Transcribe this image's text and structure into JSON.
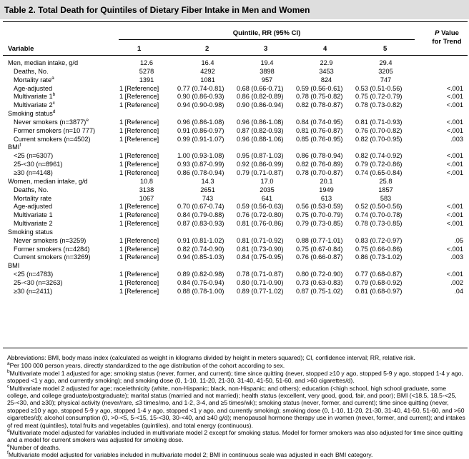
{
  "title": "Table 2. Total Death for Quintiles of Dietary Fiber Intake in Men and Women",
  "header": {
    "group": "Quintile, RR (95% CI)",
    "variable": "Variable",
    "q": [
      "1",
      "2",
      "3",
      "4",
      "5"
    ],
    "p_italic": "P",
    "p_value": "Value",
    "for_trend": "for Trend"
  },
  "rows": [
    {
      "label": "Men, median intake, g/d",
      "indent": false,
      "mid": true,
      "cells": [
        "12.6",
        "16.4",
        "19.4",
        "22.9",
        "29.4"
      ],
      "p": ""
    },
    {
      "label": "Deaths, No.",
      "indent": true,
      "mid": true,
      "cells": [
        "5278",
        "4292",
        "3898",
        "3453",
        "3205"
      ],
      "p": ""
    },
    {
      "label": "Mortality rate",
      "sup": "a",
      "indent": true,
      "mid": true,
      "cells": [
        "1391",
        "1081",
        "957",
        "824",
        "747"
      ],
      "p": ""
    },
    {
      "label": "Age-adjusted",
      "indent": true,
      "cells": [
        "1 [Reference]",
        "0.77 (0.74-0.81)",
        "0.68 (0.66-0.71)",
        "0.59 (0.56-0.61)",
        "0.53 (0.51-0.56)"
      ],
      "p": "<.001"
    },
    {
      "label": "Multivariate 1",
      "sup": "b",
      "indent": true,
      "cells": [
        "1 [Reference]",
        "0.90 (0.86-0.93)",
        "0.86 (0.82-0.89)",
        "0.78 (0.75-0.82)",
        "0.75 (0.72-0.79)"
      ],
      "p": "<.001"
    },
    {
      "label": "Multivariate 2",
      "sup": "c",
      "indent": true,
      "cells": [
        "1 [Reference]",
        "0.94 (0.90-0.98)",
        "0.90 (0.86-0.94)",
        "0.82 (0.78-0.87)",
        "0.78 (0.73-0.82)"
      ],
      "p": "<.001"
    },
    {
      "label": "Smoking status",
      "sup": "d",
      "indent": false,
      "cells": [
        "",
        "",
        "",
        "",
        ""
      ],
      "p": ""
    },
    {
      "label": "Never smokers (n=3877)",
      "sup": "e",
      "indent": true,
      "cells": [
        "1 [Reference]",
        "0.96 (0.86-1.08)",
        "0.96 (0.86-1.08)",
        "0.84 (0.74-0.95)",
        "0.81 (0.71-0.93)"
      ],
      "p": "<.001"
    },
    {
      "label": "Former smokers (n=10 777)",
      "indent": true,
      "cells": [
        "1 [Reference]",
        "0.91 (0.86-0.97)",
        "0.87 (0.82-0.93)",
        "0.81 (0.76-0.87)",
        "0.76 (0.70-0.82)"
      ],
      "p": "<.001"
    },
    {
      "label": "Current smokers (n=4502)",
      "indent": true,
      "cells": [
        "1 [Reference]",
        "0.99 (0.91-1.07)",
        "0.96 (0.88-1.06)",
        "0.85 (0.76-0.95)",
        "0.82 (0.70-0.95)"
      ],
      "p": ".003"
    },
    {
      "label": "BMI",
      "sup": "f",
      "indent": false,
      "cells": [
        "",
        "",
        "",
        "",
        ""
      ],
      "p": ""
    },
    {
      "label": "<25 (n=6307)",
      "indent": true,
      "cells": [
        "1 [Reference]",
        "1.00 (0.93-1.08)",
        "0.95 (0.87-1.03)",
        "0.86 (0.78-0.94)",
        "0.82 (0.74-0.92)"
      ],
      "p": "<.001"
    },
    {
      "label": "25-<30 (n=8961)",
      "indent": true,
      "cells": [
        "1 [Reference]",
        "0.93 (0.87-0.99)",
        "0.92 (0.86-0.99)",
        "0.82 (0.76-0.89)",
        "0.79 (0.72-0.86)"
      ],
      "p": "<.001"
    },
    {
      "label": "≥30 (n=4148)",
      "indent": true,
      "cells": [
        "1 [Reference]",
        "0.86 (0.78-0.94)",
        "0.79 (0.71-0.87)",
        "0.78 (0.70-0.87)",
        "0.74 (0.65-0.84)"
      ],
      "p": "<.001"
    },
    {
      "label": "Women, median intake, g/d",
      "indent": false,
      "mid": true,
      "cells": [
        "10.8",
        "14.3",
        "17.0",
        "20.1",
        "25.8"
      ],
      "p": ""
    },
    {
      "label": "Deaths, No.",
      "indent": true,
      "mid": true,
      "cells": [
        "3138",
        "2651",
        "2035",
        "1949",
        "1857"
      ],
      "p": ""
    },
    {
      "label": "Mortality rate",
      "indent": true,
      "mid": true,
      "cells": [
        "1067",
        "743",
        "641",
        "613",
        "583"
      ],
      "p": ""
    },
    {
      "label": "Age-adjusted",
      "indent": true,
      "cells": [
        "1 [Reference]",
        "0.70 (0.67-0.74)",
        "0.59 (0.56-0.63)",
        "0.56 (0.53-0.59)",
        "0.52 (0.50-0.56)"
      ],
      "p": "<.001"
    },
    {
      "label": "Multivariate 1",
      "indent": true,
      "cells": [
        "1 [Reference]",
        "0.84 (0.79-0.88)",
        "0.76 (0.72-0.80)",
        "0.75 (0.70-0.79)",
        "0.74 (0.70-0.78)"
      ],
      "p": "<.001"
    },
    {
      "label": "Multivariate 2",
      "indent": true,
      "cells": [
        "1 [Reference]",
        "0.87 (0.83-0.93)",
        "0.81 (0.76-0.86)",
        "0.79 (0.73-0.85)",
        "0.78 (0.73-0.85)"
      ],
      "p": "<.001"
    },
    {
      "label": "Smoking status",
      "indent": false,
      "cells": [
        "",
        "",
        "",
        "",
        ""
      ],
      "p": ""
    },
    {
      "label": "Never smokers (n=3259)",
      "indent": true,
      "cells": [
        "1 [Reference]",
        "0.91 (0.81-1.02)",
        "0.81 (0.71-0.92)",
        "0.88 (0.77-1.01)",
        "0.83 (0.72-0.97)"
      ],
      "p": ".05"
    },
    {
      "label": "Former smokers (n=4284)",
      "indent": true,
      "cells": [
        "1 [Reference]",
        "0.82 (0.74-0.90)",
        "0.81 (0.73-0.90)",
        "0.75 (0.67-0.84)",
        "0.75 (0.66-0.86)"
      ],
      "p": "<.001"
    },
    {
      "label": "Current smokers (n=3269)",
      "indent": true,
      "cells": [
        "1 [Reference]",
        "0.94 (0.85-1.03)",
        "0.84 (0.75-0.95)",
        "0.76 (0.66-0.87)",
        "0.86 (0.73-1.02)"
      ],
      "p": ".003"
    },
    {
      "label": "BMI",
      "indent": false,
      "cells": [
        "",
        "",
        "",
        "",
        ""
      ],
      "p": ""
    },
    {
      "label": "<25 (n=4783)",
      "indent": true,
      "cells": [
        "1 [Reference]",
        "0.89 (0.82-0.98)",
        "0.78 (0.71-0.87)",
        "0.80 (0.72-0.90)",
        "0.77 (0.68-0.87)"
      ],
      "p": "<.001"
    },
    {
      "label": "25-<30 (n=3263)",
      "indent": true,
      "cells": [
        "1 [Reference]",
        "0.84 (0.75-0.94)",
        "0.80 (0.71-0.90)",
        "0.73 (0.63-0.83)",
        "0.79 (0.68-0.92)"
      ],
      "p": ".002"
    },
    {
      "label": "≥30 (n=2411)",
      "indent": true,
      "cells": [
        "1 [Reference]",
        "0.88 (0.78-1.00)",
        "0.89 (0.77-1.02)",
        "0.87 (0.75-1.02)",
        "0.81 (0.68-0.97)"
      ],
      "p": ".04"
    }
  ],
  "footnotes": {
    "abbreviations": "Abbreviations: BMI, body mass index (calculated as weight in kilograms divided by height in meters squared); CI, confidence interval; RR, relative risk.",
    "a": {
      "mark": "a",
      "text": "Per 100 000 person years, directly standardized to the age distribution of the cohort according to sex."
    },
    "b": {
      "mark": "b",
      "text": "Multivariate model 1 adjusted for age; smoking status (never, former, and current); time since quitting (never, stopped ≥10 y ago, stopped 5-9 y ago, stopped 1-4 y ago, stopped <1 y ago, and currently smoking); and smoking dose (0, 1-10, 11-20, 21-30, 31-40, 41-50, 51-60, and >60 cigarettes/d)."
    },
    "c": {
      "mark": "c",
      "text": "Multivariate model 2 adjusted for age; race/ethnicity (white, non-Hispanic; black, non-Hispanic; and others); education (<high school, high school graduate, some college, and college graduate/postgraduate); marital status (married and not married); health status (excellent, very good, good, fair, and poor); BMI (<18.5, 18.5-<25, 25-<30, and ≥30); physical activity (never/rare, ≤3 times/mo, and 1-2, 3-4, and ≥5 times/wk); smoking status (never, former, and current); time since quitting (never, stopped ≥10 y ago, stopped 5-9 y ago, stopped 1-4 y ago, stopped <1 y ago, and currently smoking); smoking dose (0, 1-10, 11-20, 21-30, 31-40, 41-50, 51-60, and >60 cigarettes/d); alcohol consumption (0, >0-<5, 5-<15, 15-<30, 30-<40, and ≥40 g/d); menopausal hormone therapy use in women (never, former, and current); and intakes of red meat (quintiles), total fruits and vegetables (quintiles), and total energy (continuous)."
    },
    "d": {
      "mark": "d",
      "text": "Multivariate model adjusted for variables included in multivariate model 2 except for smoking status. Model for former smokers was also adjusted for time since quitting and a model for current smokers was adjusted for smoking dose."
    },
    "e": {
      "mark": "e",
      "text": "Number of deaths."
    },
    "f": {
      "mark": "f",
      "text": "Multivariate model adjusted for variables included in multivariate model 2; BMI in continuous scale was adjusted in each BMI category."
    }
  }
}
